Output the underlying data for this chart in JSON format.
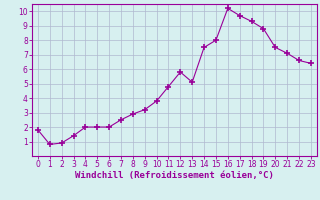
{
  "x": [
    0,
    1,
    2,
    3,
    4,
    5,
    6,
    7,
    8,
    9,
    10,
    11,
    12,
    13,
    14,
    15,
    16,
    17,
    18,
    19,
    20,
    21,
    22,
    23
  ],
  "y": [
    1.8,
    0.8,
    0.9,
    1.4,
    2.0,
    2.0,
    2.0,
    2.5,
    2.9,
    3.2,
    3.8,
    4.8,
    5.8,
    5.1,
    7.5,
    8.0,
    10.2,
    9.7,
    9.3,
    8.8,
    7.5,
    7.1,
    6.6,
    6.4
  ],
  "line_color": "#990099",
  "marker": "+",
  "marker_size": 4,
  "bg_color": "#d7f0f0",
  "grid_color": "#b0b8d0",
  "xlabel": "Windchill (Refroidissement éolien,°C)",
  "xlim_min": -0.5,
  "xlim_max": 23.5,
  "ylim_min": 0,
  "ylim_max": 10.5,
  "xticks": [
    0,
    1,
    2,
    3,
    4,
    5,
    6,
    7,
    8,
    9,
    10,
    11,
    12,
    13,
    14,
    15,
    16,
    17,
    18,
    19,
    20,
    21,
    22,
    23
  ],
  "yticks": [
    1,
    2,
    3,
    4,
    5,
    6,
    7,
    8,
    9,
    10
  ],
  "tick_fontsize": 5.5,
  "xlabel_fontsize": 6.5
}
